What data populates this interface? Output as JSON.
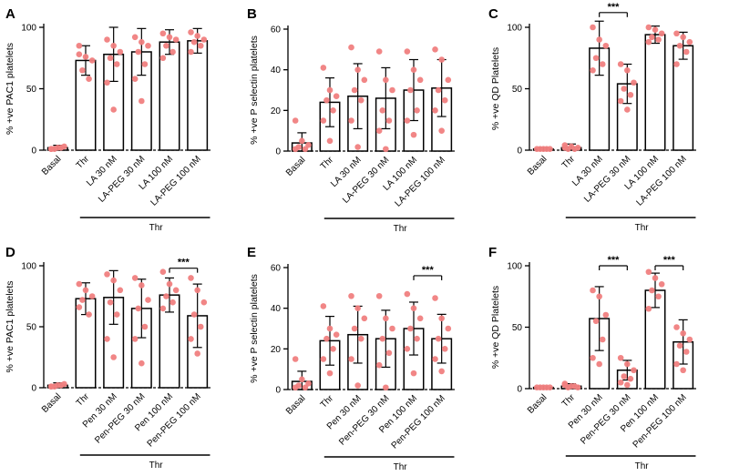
{
  "figure": {
    "point_color": "#F08080"
  },
  "chart_data": [
    {
      "panel": "A",
      "type": "bar",
      "ylabel": "% +ve PAC1 platelets",
      "ylim": [
        0,
        100
      ],
      "yticks": [
        0,
        50,
        100
      ],
      "ytick_labels": [
        "0",
        "50",
        "100"
      ],
      "categories": [
        "Basal",
        "Thr",
        "LA 30 nM",
        "LA-PEG 30 nM",
        "LA 100 nM",
        "LA-PEG 100 nM"
      ],
      "values": [
        2,
        73,
        78,
        80,
        88,
        89
      ],
      "sd": [
        2,
        12,
        22,
        19,
        10,
        10
      ],
      "points": [
        [
          1,
          2,
          3,
          1,
          2,
          1
        ],
        [
          85,
          76,
          73,
          65,
          58,
          78
        ],
        [
          90,
          85,
          80,
          75,
          70,
          55,
          33
        ],
        [
          92,
          88,
          85,
          80,
          70,
          58,
          40
        ],
        [
          95,
          92,
          90,
          85,
          80,
          75
        ],
        [
          96,
          93,
          90,
          88,
          85,
          80
        ]
      ],
      "group_label": "Thr",
      "group_span": [
        2,
        5
      ],
      "significance": []
    },
    {
      "panel": "B",
      "type": "bar",
      "ylabel": "% +ve P selectin platelets",
      "ylim": [
        0,
        60
      ],
      "yticks": [
        0,
        20,
        40,
        60
      ],
      "ytick_labels": [
        "0",
        "20",
        "40",
        "60"
      ],
      "categories": [
        "Basal",
        "Thr",
        "LA 30 nM",
        "LA-PEG 30 nM",
        "LA 100 nM",
        "LA-PEG 100 nM"
      ],
      "values": [
        4,
        24,
        27,
        26,
        30,
        31
      ],
      "sd": [
        5,
        12,
        16,
        15,
        15,
        14
      ],
      "points": [
        [
          15,
          5,
          3,
          2,
          1,
          1
        ],
        [
          41,
          30,
          27,
          25,
          20,
          15,
          5
        ],
        [
          51,
          40,
          35,
          30,
          25,
          15,
          2
        ],
        [
          49,
          35,
          30,
          20,
          15,
          10,
          1
        ],
        [
          49,
          40,
          35,
          30,
          20,
          15,
          8
        ],
        [
          50,
          45,
          35,
          30,
          25,
          20,
          10
        ]
      ],
      "group_label": "Thr",
      "group_span": [
        2,
        5
      ],
      "significance": []
    },
    {
      "panel": "C",
      "type": "bar",
      "ylabel": "% +ve QD Platelets",
      "ylim": [
        0,
        100
      ],
      "yticks": [
        0,
        50,
        100
      ],
      "ytick_labels": [
        "0",
        "50",
        "100"
      ],
      "categories": [
        "Basal",
        "Thr",
        "LA 30 nM",
        "LA-PEG 30 nM",
        "LA 100 nM",
        "LA-PEG 100 nM"
      ],
      "values": [
        1,
        2,
        83,
        54,
        94,
        85
      ],
      "sd": [
        1,
        3,
        22,
        16,
        7,
        11
      ],
      "points": [
        [
          1,
          1,
          1,
          1,
          1
        ],
        [
          4,
          3,
          2,
          1,
          1,
          2
        ],
        [
          100,
          90,
          85,
          75,
          70,
          65
        ],
        [
          70,
          65,
          55,
          50,
          45,
          40,
          33
        ],
        [
          100,
          98,
          95,
          92,
          90,
          88
        ],
        [
          95,
          92,
          88,
          85,
          80,
          70
        ]
      ],
      "group_label": "Thr",
      "group_span": [
        2,
        5
      ],
      "significance": [
        {
          "from": 2,
          "to": 3,
          "label": "***",
          "y": 112
        }
      ]
    },
    {
      "panel": "D",
      "type": "bar",
      "ylabel": "% +ve PAC1 platelets",
      "ylim": [
        0,
        100
      ],
      "yticks": [
        0,
        50,
        100
      ],
      "ytick_labels": [
        "0",
        "50",
        "100"
      ],
      "categories": [
        "Basal",
        "Thr",
        "Pen 30 nM",
        "Pen-PEG 30 nM",
        "Pen 100 nM",
        "Pen-PEG 100 nM"
      ],
      "values": [
        2,
        73,
        74,
        65,
        76,
        59
      ],
      "sd": [
        2,
        13,
        22,
        24,
        14,
        26
      ],
      "points": [
        [
          1,
          2,
          3,
          1,
          2,
          1
        ],
        [
          85,
          80,
          75,
          72,
          60,
          66
        ],
        [
          93,
          88,
          80,
          70,
          60,
          40,
          25
        ],
        [
          90,
          84,
          72,
          65,
          50,
          40,
          20
        ],
        [
          95,
          85,
          80,
          75,
          70,
          65
        ],
        [
          90,
          80,
          70,
          60,
          50,
          40,
          28
        ]
      ],
      "group_label": "Thr",
      "group_span": [
        2,
        5
      ],
      "significance": [
        {
          "from": 4,
          "to": 5,
          "label": "***",
          "y": 98
        }
      ]
    },
    {
      "panel": "E",
      "type": "bar",
      "ylabel": "% +ve P selectin platelets",
      "ylim": [
        0,
        60
      ],
      "yticks": [
        0,
        20,
        40,
        60
      ],
      "ytick_labels": [
        "0",
        "20",
        "40",
        "60"
      ],
      "categories": [
        "Basal",
        "Thr",
        "Pen 30 nM",
        "Pen-PEG 30 nM",
        "Pen 100 nM",
        "Pen-PEG 100 nM"
      ],
      "values": [
        4,
        24,
        27,
        25,
        30,
        25
      ],
      "sd": [
        5,
        12,
        14,
        14,
        13,
        12
      ],
      "points": [
        [
          15,
          5,
          3,
          2,
          1,
          1
        ],
        [
          41,
          30,
          27,
          25,
          20,
          15,
          8
        ],
        [
          46,
          40,
          35,
          30,
          25,
          15,
          2
        ],
        [
          46,
          35,
          30,
          25,
          18,
          12,
          1
        ],
        [
          47,
          40,
          35,
          30,
          25,
          20,
          8
        ],
        [
          45,
          35,
          30,
          25,
          20,
          15,
          9
        ]
      ],
      "group_label": "Thr",
      "group_span": [
        2,
        5
      ],
      "significance": [
        {
          "from": 4,
          "to": 5,
          "label": "***",
          "y": 56
        }
      ]
    },
    {
      "panel": "F",
      "type": "bar",
      "ylabel": "% +ve QD Platelets",
      "ylim": [
        0,
        100
      ],
      "yticks": [
        0,
        50,
        100
      ],
      "ytick_labels": [
        "0",
        "50",
        "100"
      ],
      "categories": [
        "Basal",
        "Thr",
        "Pen 30 nM",
        "Pen-PEG 30 nM",
        "Pen 100 nM",
        "Pen-PEG 100 nM"
      ],
      "values": [
        1,
        2,
        57,
        15,
        80,
        38
      ],
      "sd": [
        1,
        2,
        26,
        8,
        14,
        18
      ],
      "points": [
        [
          1,
          1,
          1,
          1,
          1
        ],
        [
          3,
          2,
          1,
          1,
          2,
          4
        ],
        [
          80,
          75,
          60,
          55,
          40,
          25,
          20
        ],
        [
          25,
          20,
          15,
          10,
          8,
          5,
          3
        ],
        [
          95,
          90,
          85,
          80,
          75,
          65
        ],
        [
          50,
          45,
          40,
          35,
          30,
          20,
          15
        ]
      ],
      "group_label": "Thr",
      "group_span": [
        2,
        5
      ],
      "significance": [
        {
          "from": 2,
          "to": 3,
          "label": "***",
          "y": 100
        },
        {
          "from": 4,
          "to": 5,
          "label": "***",
          "y": 100
        }
      ]
    }
  ]
}
